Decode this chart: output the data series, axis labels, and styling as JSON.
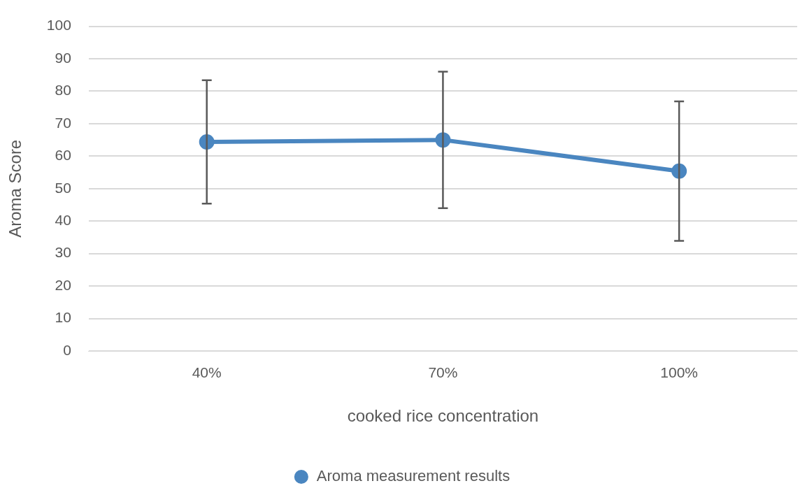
{
  "chart_data": {
    "type": "line",
    "xlabel": "cooked rice concentration",
    "ylabel": "Aroma Score",
    "categories": [
      "40%",
      "70%",
      "100%"
    ],
    "series": [
      {
        "name": "Aroma measurement results",
        "color": "#4a86c0",
        "values": [
          64.4,
          65,
          55.4
        ],
        "errors": [
          19,
          21,
          21.5
        ]
      }
    ],
    "ylim": [
      0,
      100
    ],
    "yticks": [
      0,
      10,
      20,
      30,
      40,
      50,
      60,
      70,
      80,
      90,
      100
    ],
    "grid": "y",
    "legend": "bottom",
    "marker": "circle",
    "line_style": "solid"
  }
}
